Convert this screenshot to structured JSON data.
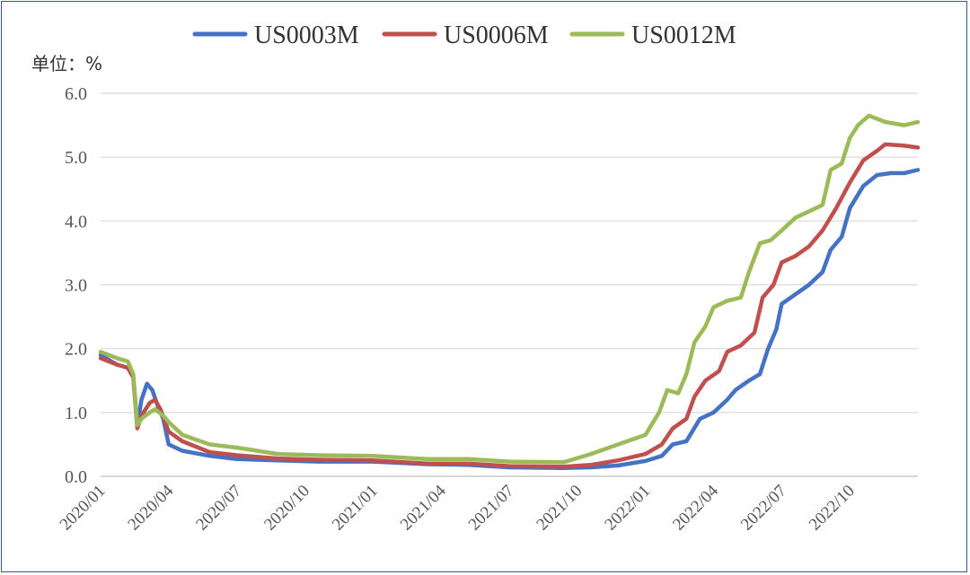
{
  "chart_data": {
    "type": "line",
    "title": "",
    "xlabel": "",
    "ylabel": "单位：%",
    "ylim": [
      0,
      6
    ],
    "yticks": [
      "0.0",
      "1.0",
      "2.0",
      "3.0",
      "4.0",
      "5.0",
      "6.0"
    ],
    "grid": true,
    "legend_position": "top",
    "xlim": [
      2020.0,
      2023.0
    ],
    "xticks": [
      {
        "label": "2020/01",
        "value": 2020.0
      },
      {
        "label": "2020/04",
        "value": 2020.25
      },
      {
        "label": "2020/07",
        "value": 2020.5
      },
      {
        "label": "2020/10",
        "value": 2020.75
      },
      {
        "label": "2021/01",
        "value": 2021.0
      },
      {
        "label": "2021/04",
        "value": 2021.25
      },
      {
        "label": "2021/07",
        "value": 2021.5
      },
      {
        "label": "2021/10",
        "value": 2021.75
      },
      {
        "label": "2022/01",
        "value": 2022.0
      },
      {
        "label": "2022/04",
        "value": 2022.25
      },
      {
        "label": "2022/07",
        "value": 2022.5
      },
      {
        "label": "2022/10",
        "value": 2022.75
      }
    ],
    "series": [
      {
        "name": "US0003M",
        "color": "#4472c4",
        "points": [
          [
            2020.0,
            1.9
          ],
          [
            2020.06,
            1.75
          ],
          [
            2020.1,
            1.7
          ],
          [
            2020.12,
            1.55
          ],
          [
            2020.135,
            0.8
          ],
          [
            2020.15,
            1.2
          ],
          [
            2020.17,
            1.45
          ],
          [
            2020.19,
            1.35
          ],
          [
            2020.21,
            1.1
          ],
          [
            2020.23,
            0.9
          ],
          [
            2020.25,
            0.5
          ],
          [
            2020.3,
            0.4
          ],
          [
            2020.4,
            0.32
          ],
          [
            2020.5,
            0.27
          ],
          [
            2020.65,
            0.25
          ],
          [
            2020.8,
            0.23
          ],
          [
            2021.0,
            0.23
          ],
          [
            2021.2,
            0.19
          ],
          [
            2021.35,
            0.18
          ],
          [
            2021.5,
            0.14
          ],
          [
            2021.7,
            0.13
          ],
          [
            2021.8,
            0.14
          ],
          [
            2021.9,
            0.17
          ],
          [
            2022.0,
            0.24
          ],
          [
            2022.06,
            0.32
          ],
          [
            2022.1,
            0.5
          ],
          [
            2022.15,
            0.55
          ],
          [
            2022.2,
            0.9
          ],
          [
            2022.25,
            1.0
          ],
          [
            2022.3,
            1.2
          ],
          [
            2022.33,
            1.35
          ],
          [
            2022.38,
            1.5
          ],
          [
            2022.42,
            1.6
          ],
          [
            2022.45,
            2.0
          ],
          [
            2022.48,
            2.3
          ],
          [
            2022.5,
            2.7
          ],
          [
            2022.55,
            2.85
          ],
          [
            2022.6,
            3.0
          ],
          [
            2022.65,
            3.2
          ],
          [
            2022.68,
            3.55
          ],
          [
            2022.72,
            3.75
          ],
          [
            2022.75,
            4.2
          ],
          [
            2022.8,
            4.55
          ],
          [
            2022.85,
            4.72
          ],
          [
            2022.9,
            4.75
          ],
          [
            2022.95,
            4.75
          ],
          [
            2023.0,
            4.8
          ]
        ]
      },
      {
        "name": "US0006M",
        "color": "#c0504d",
        "points": [
          [
            2020.0,
            1.85
          ],
          [
            2020.06,
            1.75
          ],
          [
            2020.1,
            1.7
          ],
          [
            2020.12,
            1.55
          ],
          [
            2020.135,
            0.75
          ],
          [
            2020.15,
            0.95
          ],
          [
            2020.18,
            1.15
          ],
          [
            2020.2,
            1.2
          ],
          [
            2020.22,
            1.05
          ],
          [
            2020.25,
            0.7
          ],
          [
            2020.3,
            0.55
          ],
          [
            2020.4,
            0.38
          ],
          [
            2020.5,
            0.33
          ],
          [
            2020.65,
            0.28
          ],
          [
            2020.8,
            0.26
          ],
          [
            2021.0,
            0.25
          ],
          [
            2021.2,
            0.2
          ],
          [
            2021.35,
            0.2
          ],
          [
            2021.5,
            0.16
          ],
          [
            2021.7,
            0.15
          ],
          [
            2021.8,
            0.18
          ],
          [
            2021.9,
            0.25
          ],
          [
            2022.0,
            0.35
          ],
          [
            2022.06,
            0.5
          ],
          [
            2022.1,
            0.75
          ],
          [
            2022.15,
            0.9
          ],
          [
            2022.18,
            1.25
          ],
          [
            2022.22,
            1.5
          ],
          [
            2022.27,
            1.65
          ],
          [
            2022.3,
            1.95
          ],
          [
            2022.35,
            2.05
          ],
          [
            2022.4,
            2.25
          ],
          [
            2022.43,
            2.8
          ],
          [
            2022.47,
            3.0
          ],
          [
            2022.5,
            3.35
          ],
          [
            2022.55,
            3.45
          ],
          [
            2022.6,
            3.6
          ],
          [
            2022.65,
            3.85
          ],
          [
            2022.7,
            4.2
          ],
          [
            2022.75,
            4.6
          ],
          [
            2022.8,
            4.95
          ],
          [
            2022.85,
            5.1
          ],
          [
            2022.88,
            5.2
          ],
          [
            2022.95,
            5.18
          ],
          [
            2023.0,
            5.15
          ]
        ]
      },
      {
        "name": "US0012M",
        "color": "#9bbb59",
        "points": [
          [
            2020.0,
            1.95
          ],
          [
            2020.06,
            1.85
          ],
          [
            2020.1,
            1.8
          ],
          [
            2020.12,
            1.6
          ],
          [
            2020.135,
            0.8
          ],
          [
            2020.15,
            0.9
          ],
          [
            2020.18,
            1.0
          ],
          [
            2020.2,
            1.05
          ],
          [
            2020.23,
            0.95
          ],
          [
            2020.25,
            0.85
          ],
          [
            2020.3,
            0.65
          ],
          [
            2020.4,
            0.5
          ],
          [
            2020.5,
            0.45
          ],
          [
            2020.65,
            0.35
          ],
          [
            2020.8,
            0.33
          ],
          [
            2021.0,
            0.32
          ],
          [
            2021.2,
            0.27
          ],
          [
            2021.35,
            0.27
          ],
          [
            2021.5,
            0.23
          ],
          [
            2021.7,
            0.22
          ],
          [
            2021.8,
            0.35
          ],
          [
            2021.9,
            0.5
          ],
          [
            2022.0,
            0.65
          ],
          [
            2022.05,
            1.0
          ],
          [
            2022.08,
            1.35
          ],
          [
            2022.12,
            1.3
          ],
          [
            2022.15,
            1.6
          ],
          [
            2022.18,
            2.1
          ],
          [
            2022.22,
            2.35
          ],
          [
            2022.25,
            2.65
          ],
          [
            2022.3,
            2.75
          ],
          [
            2022.35,
            2.8
          ],
          [
            2022.38,
            3.2
          ],
          [
            2022.42,
            3.65
          ],
          [
            2022.46,
            3.7
          ],
          [
            2022.5,
            3.85
          ],
          [
            2022.55,
            4.05
          ],
          [
            2022.6,
            4.15
          ],
          [
            2022.65,
            4.25
          ],
          [
            2022.68,
            4.8
          ],
          [
            2022.72,
            4.9
          ],
          [
            2022.75,
            5.3
          ],
          [
            2022.78,
            5.5
          ],
          [
            2022.82,
            5.65
          ],
          [
            2022.88,
            5.55
          ],
          [
            2022.95,
            5.5
          ],
          [
            2023.0,
            5.55
          ]
        ]
      }
    ]
  }
}
